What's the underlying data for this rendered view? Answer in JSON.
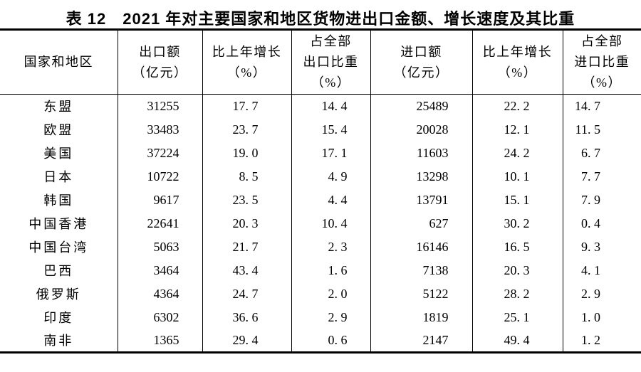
{
  "title": "表 12　2021 年对主要国家和地区货物进出口金额、增长速度及其比重",
  "colors": {
    "text": "#000000",
    "rule": "#000000",
    "background": "#ffffff"
  },
  "table": {
    "headers": [
      {
        "lines": [
          "国家和地区"
        ]
      },
      {
        "lines": [
          "出口额",
          "（亿元）"
        ]
      },
      {
        "lines": [
          "比上年增长",
          "（%）"
        ]
      },
      {
        "lines": [
          "占全部",
          "出口比重",
          "（%）"
        ]
      },
      {
        "lines": [
          "进口额",
          "（亿元）"
        ]
      },
      {
        "lines": [
          "比上年增长",
          "（%）"
        ]
      },
      {
        "lines": [
          "占全部",
          "进口比重",
          "（%）"
        ]
      }
    ],
    "rows": [
      {
        "region": "东盟",
        "values": [
          "31255",
          "17. 7",
          "14. 4",
          "25489",
          "22. 2",
          "14. 7"
        ]
      },
      {
        "region": "欧盟",
        "values": [
          "33483",
          "23. 7",
          "15. 4",
          "20028",
          "12. 1",
          "11. 5"
        ]
      },
      {
        "region": "美国",
        "values": [
          "37224",
          "19. 0",
          "17. 1",
          "11603",
          "24. 2",
          "6. 7"
        ]
      },
      {
        "region": "日本",
        "values": [
          "10722",
          "8. 5",
          "4. 9",
          "13298",
          "10. 1",
          "7. 7"
        ]
      },
      {
        "region": "韩国",
        "values": [
          "9617",
          "23. 5",
          "4. 4",
          "13791",
          "15. 1",
          "7. 9"
        ]
      },
      {
        "region": "中国香港",
        "values": [
          "22641",
          "20. 3",
          "10. 4",
          "627",
          "30. 2",
          "0. 4"
        ]
      },
      {
        "region": "中国台湾",
        "values": [
          "5063",
          "21. 7",
          "2. 3",
          "16146",
          "16. 5",
          "9. 3"
        ]
      },
      {
        "region": "巴西",
        "values": [
          "3464",
          "43. 4",
          "1. 6",
          "7138",
          "20. 3",
          "4. 1"
        ]
      },
      {
        "region": "俄罗斯",
        "values": [
          "4364",
          "24. 7",
          "2. 0",
          "5122",
          "28. 2",
          "2. 9"
        ]
      },
      {
        "region": "印度",
        "values": [
          "6302",
          "36. 6",
          "2. 9",
          "1819",
          "25. 1",
          "1. 0"
        ]
      },
      {
        "region": "南非",
        "values": [
          "1365",
          "29. 4",
          "0. 6",
          "2147",
          "49. 4",
          "1. 2"
        ]
      }
    ]
  }
}
